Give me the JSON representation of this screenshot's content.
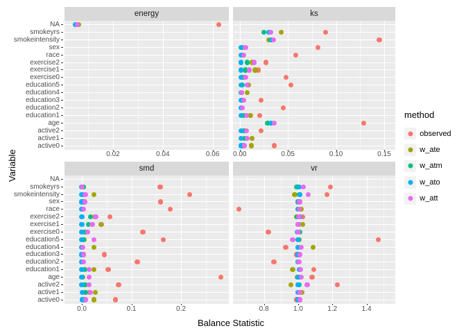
{
  "axes": {
    "x_title": "Balance Statistic",
    "y_title": "Variable"
  },
  "legend": {
    "title": "method",
    "items": [
      {
        "label": "observed",
        "color": "#F8766D"
      },
      {
        "label": "w_ate",
        "color": "#A3A500"
      },
      {
        "label": "w_atm",
        "color": "#00BF7D"
      },
      {
        "label": "w_ato",
        "color": "#00B0F6"
      },
      {
        "label": "w_att",
        "color": "#E76BF3"
      }
    ]
  },
  "chart_data": {
    "type": "scatter",
    "title": "",
    "xlabel": "Balance Statistic",
    "ylabel": "Variable",
    "legend_position": "right",
    "grid": true,
    "panel_background": "#EBEBEB",
    "strip_background": "#D9D9D9",
    "grid_color": "#FFFFFF",
    "categories_top_to_bottom": [
      "NA",
      "smokeyrs",
      "smokeintensity",
      "sex",
      "race",
      "exercise2",
      "exercise1",
      "exercise0",
      "education5",
      "education4",
      "education3",
      "education2",
      "education1",
      "age",
      "active2",
      "active1",
      "active0"
    ],
    "methods_draw_order": [
      "observed",
      "w_ate",
      "w_atm",
      "w_ato",
      "w_att"
    ],
    "method_colors": {
      "observed": "#F8766D",
      "w_ate": "#A3A500",
      "w_atm": "#00BF7D",
      "w_ato": "#00B0F6",
      "w_att": "#E76BF3"
    },
    "facets": [
      {
        "name": "energy",
        "xlim": [
          0.0005,
          0.0665
        ],
        "ticks": [
          {
            "v": 0.02,
            "label": "0.02"
          },
          {
            "v": 0.04,
            "label": "0.04"
          },
          {
            "v": 0.06,
            "label": "0.06"
          }
        ],
        "minor_ticks": [
          0.01,
          0.03,
          0.05
        ],
        "points": {
          "NA": {
            "observed": 0.0625,
            "w_ate": 0.0063,
            "w_atm": 0.0053,
            "w_ato": 0.0048,
            "w_att": 0.0056
          }
        }
      },
      {
        "name": "ks",
        "xlim": [
          -0.007,
          0.1615
        ],
        "ticks": [
          {
            "v": 0.0,
            "label": "0.00"
          },
          {
            "v": 0.05,
            "label": "0.05"
          },
          {
            "v": 0.1,
            "label": "0.10"
          },
          {
            "v": 0.15,
            "label": "0.15"
          }
        ],
        "minor_ticks": [
          0.025,
          0.075,
          0.125
        ],
        "points": {
          "smokeyrs": {
            "observed": 0.089,
            "w_ate": 0.043,
            "w_atm": 0.025,
            "w_ato": 0.03,
            "w_att": 0.032
          },
          "smokeintensity": {
            "observed": 0.145,
            "w_ate": 0.03,
            "w_atm": 0.032,
            "w_ato": 0.033,
            "w_att": 0.035
          },
          "sex": {
            "observed": 0.081,
            "w_ate": 0.003,
            "w_atm": 0.002,
            "w_ato": 0.001,
            "w_att": 0.006
          },
          "race": {
            "observed": 0.058,
            "w_ate": 0.003,
            "w_atm": 0.002,
            "w_ato": 0.001,
            "w_att": 0.004
          },
          "exercise2": {
            "observed": 0.027,
            "w_ate": 0.013,
            "w_atm": 0.008,
            "w_ato": 0.001,
            "w_att": 0.015
          },
          "exercise1": {
            "observed": 0.019,
            "w_ate": 0.016,
            "w_atm": 0.006,
            "w_ato": 0.001,
            "w_att": 0.01
          },
          "exercise0": {
            "observed": 0.048,
            "w_ate": 0.004,
            "w_atm": 0.003,
            "w_ato": 0.001,
            "w_att": 0.006
          },
          "education5": {
            "observed": 0.053,
            "w_ate": 0.009,
            "w_atm": 0.003,
            "w_ato": 0.001,
            "w_att": 0.008
          },
          "education4": {
            "observed": 0.002,
            "w_ate": 0.008,
            "w_atm": 0.002,
            "w_ato": 0.001,
            "w_att": 0.002
          },
          "education3": {
            "observed": 0.022,
            "w_ate": 0.003,
            "w_atm": 0.002,
            "w_ato": 0.001,
            "w_att": 0.004
          },
          "education2": {
            "observed": 0.045,
            "w_ate": 0.002,
            "w_atm": 0.002,
            "w_ato": 0.001,
            "w_att": 0.003
          },
          "education1": {
            "observed": 0.021,
            "w_ate": 0.011,
            "w_atm": 0.004,
            "w_ato": 0.001,
            "w_att": 0.007
          },
          "age": {
            "observed": 0.129,
            "w_ate": 0.033,
            "w_atm": 0.029,
            "w_ato": 0.032,
            "w_att": 0.036
          },
          "active2": {
            "observed": 0.022,
            "w_ate": 0.005,
            "w_atm": 0.004,
            "w_ato": 0.001,
            "w_att": 0.007
          },
          "active1": {
            "observed": 0.013,
            "w_ate": 0.013,
            "w_atm": 0.005,
            "w_ato": 0.001,
            "w_att": 0.008
          },
          "active0": {
            "observed": 0.036,
            "w_ate": 0.012,
            "w_atm": 0.003,
            "w_ato": 0.001,
            "w_att": 0.005
          }
        }
      },
      {
        "name": "smd",
        "xlim": [
          -0.035,
          0.2965
        ],
        "ticks": [
          {
            "v": 0.0,
            "label": "0.0"
          },
          {
            "v": 0.1,
            "label": "0.1"
          },
          {
            "v": 0.2,
            "label": "0.2"
          }
        ],
        "minor_ticks": [
          0.05,
          0.15,
          0.25
        ],
        "points": {
          "smokeyrs": {
            "observed": 0.158,
            "w_ate": 0.004,
            "w_atm": 0.004,
            "w_ato": 0.0,
            "w_att": 0.001
          },
          "smokeintensity": {
            "observed": 0.217,
            "w_ate": 0.024,
            "w_atm": 0.002,
            "w_ato": 0.0,
            "w_att": 0.007
          },
          "sex": {
            "observed": 0.159,
            "w_ate": 0.002,
            "w_atm": 0.003,
            "w_ato": 0.0,
            "w_att": 0.006
          },
          "race": {
            "observed": 0.178,
            "w_ate": 0.002,
            "w_atm": 0.001,
            "w_ato": 0.0,
            "w_att": 0.004
          },
          "exercise2": {
            "observed": 0.057,
            "w_ate": 0.026,
            "w_atm": 0.017,
            "w_ato": 0.0,
            "w_att": 0.028
          },
          "exercise1": {
            "observed": 0.04,
            "w_ate": 0.038,
            "w_atm": 0.013,
            "w_ato": 0.0,
            "w_att": 0.021
          },
          "exercise0": {
            "observed": 0.123,
            "w_ate": 0.008,
            "w_atm": 0.006,
            "w_ato": 0.0,
            "w_att": 0.012
          },
          "education5": {
            "observed": 0.164,
            "w_ate": 0.005,
            "w_atm": 0.004,
            "w_ato": 0.0,
            "w_att": 0.024
          },
          "education4": {
            "observed": 0.001,
            "w_ate": 0.025,
            "w_atm": 0.001,
            "w_ato": 0.0,
            "w_att": 0.002
          },
          "education3": {
            "observed": 0.046,
            "w_ate": 0.003,
            "w_atm": 0.002,
            "w_ato": 0.0,
            "w_att": 0.004
          },
          "education2": {
            "observed": 0.112,
            "w_ate": 0.002,
            "w_atm": 0.001,
            "w_ato": 0.0,
            "w_att": 0.003
          },
          "education1": {
            "observed": 0.053,
            "w_ate": 0.025,
            "w_atm": 0.006,
            "w_ato": 0.0,
            "w_att": 0.015
          },
          "age": {
            "observed": 0.28,
            "w_ate": 0.002,
            "w_atm": 0.001,
            "w_ato": 0.0,
            "w_att": 0.015
          },
          "active2": {
            "observed": 0.074,
            "w_ate": 0.007,
            "w_atm": 0.006,
            "w_ato": 0.0,
            "w_att": 0.015
          },
          "active1": {
            "observed": 0.015,
            "w_ate": 0.027,
            "w_atm": 0.007,
            "w_ato": 0.001,
            "w_att": 0.017
          },
          "active0": {
            "observed": 0.068,
            "w_ate": 0.025,
            "w_atm": 0.004,
            "w_ato": 0.001,
            "w_att": 0.008
          }
        }
      },
      {
        "name": "vr",
        "xlim": [
          0.619,
          1.568
        ],
        "ticks": [
          {
            "v": 0.8,
            "label": "0.8"
          },
          {
            "v": 1.0,
            "label": "1.0"
          },
          {
            "v": 1.2,
            "label": "1.2"
          },
          {
            "v": 1.4,
            "label": "1.4"
          }
        ],
        "minor_ticks": [
          0.7,
          0.9,
          1.1,
          1.3,
          1.5
        ],
        "points": {
          "smokeyrs": {
            "observed": 1.19,
            "w_ate": 1.0,
            "w_atm": 0.992,
            "w_ato": 1.005,
            "w_att": 1.032
          },
          "smokeintensity": {
            "observed": 1.17,
            "w_ate": 0.98,
            "w_atm": 1.008,
            "w_ato": 1.012,
            "w_att": 1.06
          },
          "sex": {
            "observed": 1.01,
            "w_ate": 1.002,
            "w_atm": 1.0,
            "w_ato": 1.004,
            "w_att": 1.008
          },
          "race": {
            "observed": 0.655,
            "w_ate": 1.02,
            "w_atm": 1.0,
            "w_ato": 1.002,
            "w_att": 1.006
          },
          "exercise2": {
            "observed": 1.028,
            "w_ate": 0.99,
            "w_atm": 0.996,
            "w_ato": 1.012,
            "w_att": 1.004
          },
          "exercise1": {
            "observed": 1.005,
            "w_ate": 1.028,
            "w_atm": 1.0,
            "w_ato": 1.002,
            "w_att": 1.0
          },
          "exercise0": {
            "observed": 0.826,
            "w_ate": 1.0,
            "w_atm": 1.01,
            "w_ato": 0.994,
            "w_att": 1.0
          },
          "education5": {
            "observed": 1.47,
            "w_ate": 1.005,
            "w_atm": 1.0,
            "w_ato": 1.002,
            "w_att": 0.968
          },
          "education4": {
            "observed": 0.927,
            "w_ate": 1.089,
            "w_atm": 1.0,
            "w_ato": 0.998,
            "w_att": 1.02
          },
          "education3": {
            "observed": 0.99,
            "w_ate": 1.003,
            "w_atm": 1.0,
            "w_ato": 1.0,
            "w_att": 1.012
          },
          "education2": {
            "observed": 0.858,
            "w_ate": 1.002,
            "w_atm": 1.0,
            "w_ato": 1.0,
            "w_att": 1.004
          },
          "education1": {
            "observed": 1.093,
            "w_ate": 0.968,
            "w_atm": 1.01,
            "w_ato": 1.005,
            "w_att": 1.015
          },
          "age": {
            "observed": 1.081,
            "w_ate": 0.995,
            "w_atm": 1.005,
            "w_ato": 1.0,
            "w_att": 1.018
          },
          "active2": {
            "observed": 1.231,
            "w_ate": 0.959,
            "w_atm": 1.005,
            "w_ato": 1.0,
            "w_att": 1.053
          },
          "active1": {
            "observed": 1.012,
            "w_ate": 1.022,
            "w_atm": 1.004,
            "w_ato": 1.0,
            "w_att": 1.008
          },
          "active0": {
            "observed": 0.99,
            "w_ate": 1.01,
            "w_atm": 1.005,
            "w_ato": 1.0,
            "w_att": 1.012
          }
        }
      }
    ]
  }
}
